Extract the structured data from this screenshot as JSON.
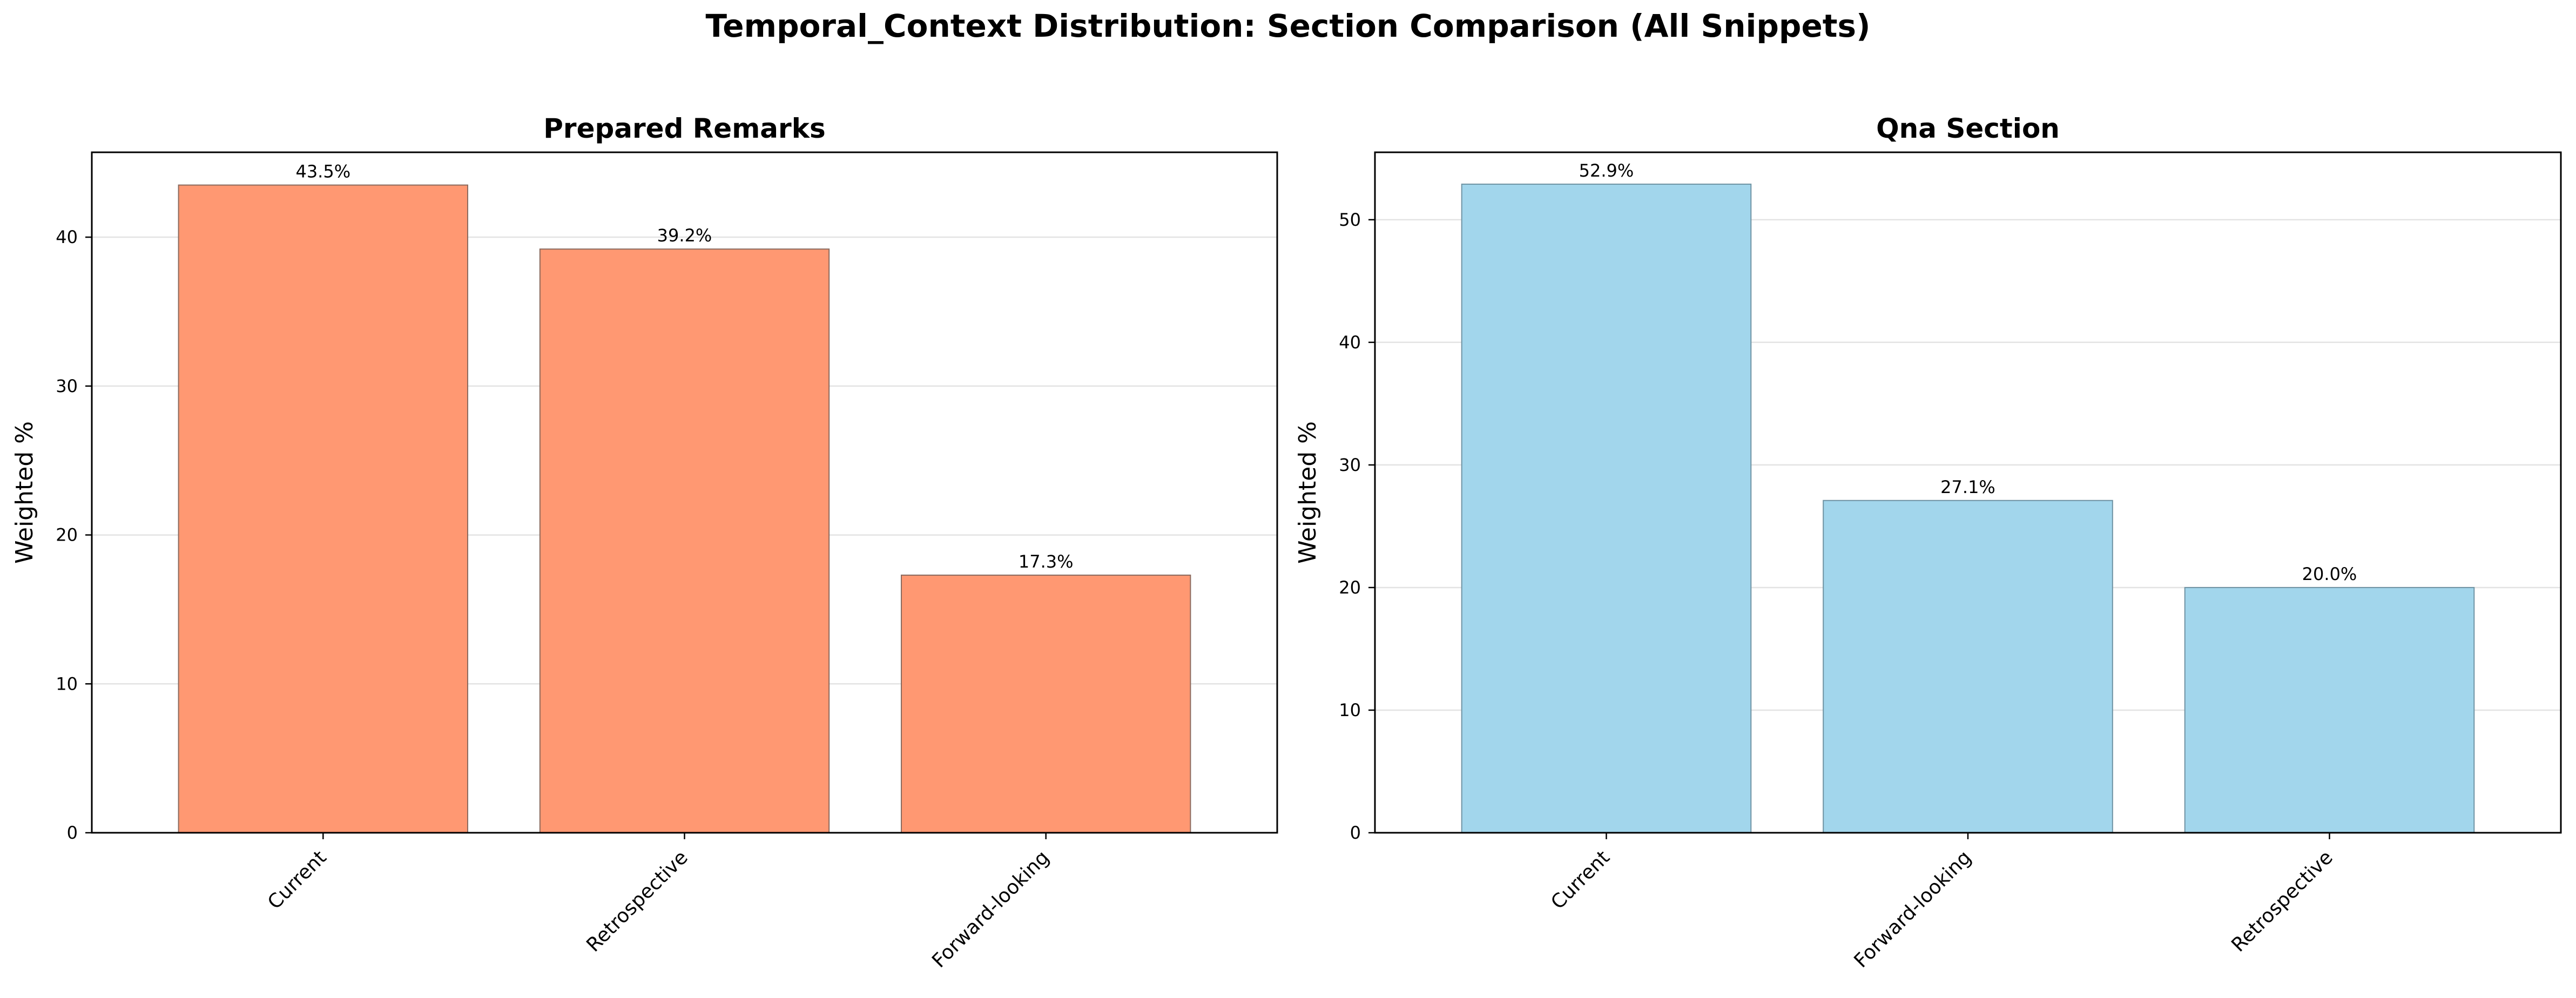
{
  "figure": {
    "suptitle": "Temporal_Context Distribution: Section Comparison (All Snippets)"
  },
  "chart_data": [
    {
      "type": "bar",
      "title": "Prepared Remarks",
      "xlabel": "",
      "ylabel": "Weighted %",
      "categories": [
        "Current",
        "Retrospective",
        "Forward-looking"
      ],
      "values": [
        43.5,
        39.2,
        17.3
      ],
      "value_labels": [
        "43.5%",
        "39.2%",
        "17.3%"
      ],
      "ylim": [
        0,
        45.7
      ],
      "yticks": [
        0,
        10,
        20,
        30,
        40
      ],
      "grid": "y",
      "bar_color": "#FF9872",
      "bar_edge_color": "#8a6a5e"
    },
    {
      "type": "bar",
      "title": "Qna Section",
      "xlabel": "",
      "ylabel": "Weighted %",
      "categories": [
        "Current",
        "Forward-looking",
        "Retrospective"
      ],
      "values": [
        52.9,
        27.1,
        20.0
      ],
      "value_labels": [
        "52.9%",
        "27.1%",
        "20.0%"
      ],
      "ylim": [
        0,
        55.5
      ],
      "yticks": [
        0,
        10,
        20,
        30,
        40,
        50
      ],
      "grid": "y",
      "bar_color": "#A2D6EC",
      "bar_edge_color": "#6f93a3"
    }
  ]
}
